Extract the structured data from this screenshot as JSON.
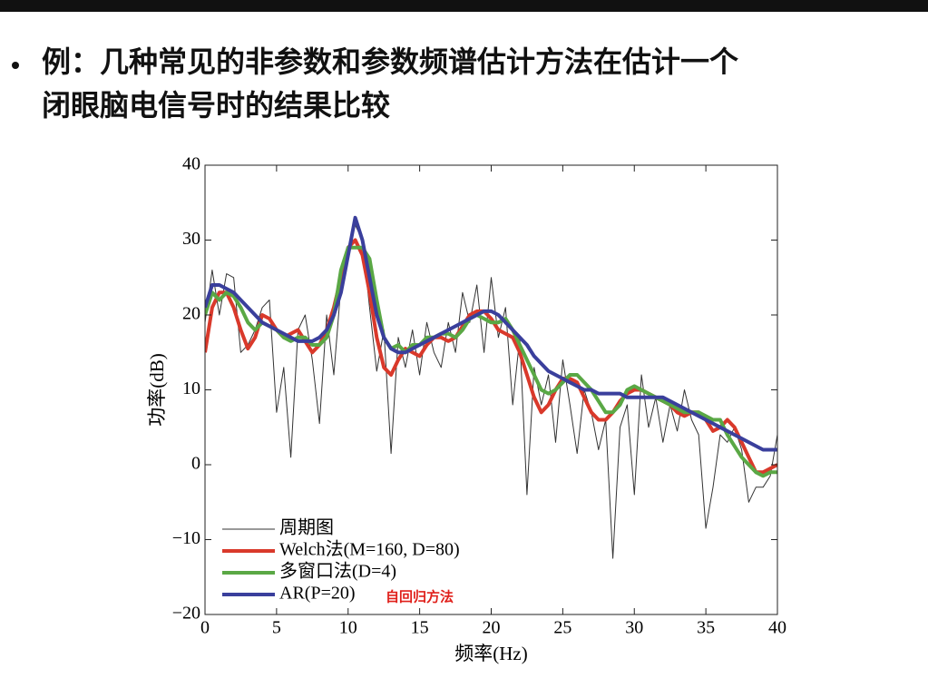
{
  "chart_data": {
    "type": "line",
    "title": [
      "例：几种常见的非参数和参数频谱估计方法在估计一个",
      "闭眼脑电信号时的结果比较"
    ],
    "xlabel": "频率(Hz)",
    "ylabel": "功率(dB)",
    "annotation": "自回归方法",
    "xlim": [
      0,
      40
    ],
    "xticks": [
      0,
      5,
      10,
      15,
      20,
      25,
      30,
      35,
      40
    ],
    "ylim": [
      -20,
      40
    ],
    "yticks": [
      {
        "value": -20,
        "label": "−20"
      },
      {
        "value": -10,
        "label": "−10"
      },
      0,
      10,
      20,
      30,
      40
    ],
    "grid": false,
    "legend": "lower left",
    "x": [
      0,
      0.5,
      1,
      1.5,
      2,
      2.5,
      3,
      3.5,
      4,
      4.5,
      5,
      5.5,
      6,
      6.5,
      7,
      7.5,
      8,
      8.5,
      9,
      9.5,
      10,
      10.5,
      11,
      11.5,
      12,
      12.5,
      13,
      13.5,
      14,
      14.5,
      15,
      15.5,
      16,
      16.5,
      17,
      17.5,
      18,
      18.5,
      19,
      19.5,
      20,
      20.5,
      21,
      21.5,
      22,
      22.5,
      23,
      23.5,
      24,
      24.5,
      25,
      25.5,
      26,
      26.5,
      27,
      27.5,
      28,
      28.5,
      29,
      29.5,
      30,
      30.5,
      31,
      31.5,
      32,
      32.5,
      33,
      33.5,
      34,
      34.5,
      35,
      35.5,
      36,
      36.5,
      37,
      37.5,
      38,
      38.5,
      39,
      39.5,
      40
    ],
    "series": [
      {
        "name": "周期图",
        "color": "#333333",
        "width": 1,
        "values": [
          19,
          26,
          20,
          25.5,
          25,
          15,
          16,
          18,
          21,
          22,
          7,
          13,
          1,
          18,
          20,
          14,
          5.5,
          20,
          12,
          24,
          29,
          32,
          30,
          21,
          12.5,
          18,
          1.5,
          17,
          13,
          18,
          12,
          19,
          15,
          13,
          19,
          15,
          23,
          19,
          24,
          15,
          25,
          17,
          21,
          8,
          17,
          -4,
          13,
          8,
          12,
          3,
          14,
          8,
          1.5,
          10,
          7,
          2,
          6,
          -12.5,
          5,
          8,
          -4,
          12,
          5,
          9,
          3,
          8,
          4.5,
          10,
          6,
          4,
          -8.5,
          -3,
          4,
          3,
          5,
          2,
          -5,
          -3,
          -3,
          -1.5,
          4
        ]
      },
      {
        "name": "Welch法(M=160, D=80)",
        "color": "#d9392b",
        "width": 4,
        "values": [
          15,
          21,
          23,
          23,
          21,
          18,
          15.5,
          17,
          20,
          19.5,
          18,
          17,
          17.5,
          18,
          16.5,
          15,
          16,
          18,
          21,
          25,
          29,
          30,
          28,
          23,
          17,
          13,
          12,
          14,
          15.5,
          15,
          14.5,
          16,
          17,
          17,
          16.5,
          17,
          18.5,
          20,
          20.5,
          20.5,
          19.5,
          18,
          17.5,
          17,
          15,
          12,
          9,
          7,
          8,
          10,
          11.5,
          11.5,
          11,
          9,
          7,
          6,
          6,
          7,
          8.5,
          9.5,
          10,
          10,
          9.5,
          9,
          8.5,
          8,
          7,
          6.5,
          7,
          7,
          6,
          4.5,
          5,
          6,
          5,
          3,
          1,
          -1,
          -1,
          -0.5,
          0
        ]
      },
      {
        "name": "多窗口法(D=4)",
        "color": "#5aa845",
        "width": 4,
        "values": [
          20,
          23,
          22,
          23,
          22.5,
          21,
          19,
          18,
          19,
          18.5,
          18,
          17,
          16.5,
          17,
          17,
          16,
          16,
          17,
          20,
          26,
          29,
          29,
          29,
          27.5,
          22,
          17,
          15.5,
          16,
          15,
          16,
          16,
          17,
          17,
          17.5,
          17.5,
          17,
          18,
          19.5,
          20,
          19.5,
          19,
          19,
          19.5,
          18,
          16,
          14,
          12,
          10,
          9.5,
          10,
          11,
          12,
          12,
          11,
          10,
          8.5,
          7,
          7,
          8,
          10,
          10.5,
          10,
          9.5,
          9,
          8.5,
          8,
          7.5,
          7,
          7,
          7,
          6.5,
          6,
          6,
          4,
          2.5,
          1,
          0,
          -1,
          -1.5,
          -1,
          -1
        ]
      },
      {
        "name": "AR(P=20)",
        "color": "#3a3f9c",
        "width": 4,
        "values": [
          21,
          24,
          24,
          23.5,
          23,
          22,
          21,
          20,
          19,
          18.5,
          18,
          17.5,
          17,
          16.5,
          16.5,
          16.5,
          17,
          18,
          20,
          23,
          28,
          33,
          30,
          25,
          20,
          17,
          15.5,
          15,
          15,
          15.5,
          16,
          16.5,
          17,
          17.5,
          18,
          18.5,
          19,
          19.5,
          20,
          20.5,
          20.5,
          20,
          19,
          18,
          17,
          16,
          14.5,
          13.5,
          12.5,
          12,
          11.5,
          11,
          10.5,
          10,
          10,
          9.5,
          9.5,
          9.5,
          9.5,
          9,
          9,
          9,
          9,
          9,
          9,
          8.5,
          8,
          7.5,
          7,
          6.5,
          6,
          5.5,
          5,
          4.5,
          4,
          3.5,
          3,
          2.5,
          2,
          2,
          2
        ]
      }
    ]
  }
}
